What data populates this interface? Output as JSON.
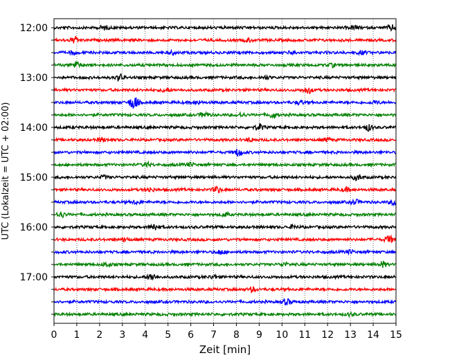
{
  "chart_data": {
    "type": "line",
    "title": "",
    "xlabel": "Zeit  [min]",
    "ylabel": "UTC (Lokalzeit = UTC + 02:00)",
    "xlim": [
      0,
      15
    ],
    "x_ticks": [
      0,
      1,
      2,
      3,
      4,
      5,
      6,
      7,
      8,
      9,
      10,
      11,
      12,
      13,
      14,
      15
    ],
    "y_tick_labels": [
      "12:00",
      "13:00",
      "14:00",
      "15:00",
      "16:00",
      "17:00"
    ],
    "grid": "vertical dotted lines at each minute",
    "trace_colors": [
      "#000000",
      "#ff0000",
      "#0000ff",
      "#008000"
    ],
    "series": [
      {
        "start": "12:00",
        "color": "#000000",
        "events": [
          {
            "x": 2.2,
            "amp": 0.6
          },
          {
            "x": 13.2,
            "amp": 0.6
          },
          {
            "x": 14.8,
            "amp": 0.8
          }
        ]
      },
      {
        "start": "12:15",
        "color": "#ff0000",
        "events": [
          {
            "x": 0.9,
            "amp": 1.0
          },
          {
            "x": 8.5,
            "amp": 0.5
          }
        ]
      },
      {
        "start": "12:30",
        "color": "#0000ff",
        "events": [
          {
            "x": 0.8,
            "amp": 0.5
          },
          {
            "x": 5.2,
            "amp": 0.5
          },
          {
            "x": 10.5,
            "amp": 0.6
          },
          {
            "x": 13.5,
            "amp": 0.5
          }
        ]
      },
      {
        "start": "12:45",
        "color": "#008000",
        "events": [
          {
            "x": 0.95,
            "amp": 1.2
          },
          {
            "x": 12.2,
            "amp": 0.5
          }
        ]
      },
      {
        "start": "13:00",
        "color": "#000000",
        "events": [
          {
            "x": 2.9,
            "amp": 1.0
          },
          {
            "x": 9.3,
            "amp": 0.5
          }
        ]
      },
      {
        "start": "13:15",
        "color": "#ff0000",
        "events": [
          {
            "x": 4.9,
            "amp": 0.7
          },
          {
            "x": 11.15,
            "amp": 1.0
          }
        ]
      },
      {
        "start": "13:30",
        "color": "#0000ff",
        "events": [
          {
            "x": 3.5,
            "amp": 2.4
          },
          {
            "x": 6.3,
            "amp": 0.5
          },
          {
            "x": 10.8,
            "amp": 0.6
          },
          {
            "x": 14.1,
            "amp": 0.5
          }
        ]
      },
      {
        "start": "13:45",
        "color": "#008000",
        "events": [
          {
            "x": 6.6,
            "amp": 0.8
          },
          {
            "x": 8.2,
            "amp": 0.6
          },
          {
            "x": 9.6,
            "amp": 0.9
          }
        ]
      },
      {
        "start": "14:00",
        "color": "#000000",
        "events": [
          {
            "x": 9.0,
            "amp": 1.0
          },
          {
            "x": 13.8,
            "amp": 1.0
          }
        ]
      },
      {
        "start": "14:15",
        "color": "#ff0000",
        "events": [
          {
            "x": 2.1,
            "amp": 0.6
          },
          {
            "x": 8.6,
            "amp": 0.5
          },
          {
            "x": 12.0,
            "amp": 0.6
          }
        ]
      },
      {
        "start": "14:30",
        "color": "#0000ff",
        "events": [
          {
            "x": 8.1,
            "amp": 1.2
          }
        ]
      },
      {
        "start": "14:45",
        "color": "#008000",
        "events": [
          {
            "x": 4.1,
            "amp": 0.6
          },
          {
            "x": 6.0,
            "amp": 0.5
          }
        ]
      },
      {
        "start": "15:00",
        "color": "#000000",
        "events": [
          {
            "x": 2.2,
            "amp": 0.5
          },
          {
            "x": 13.3,
            "amp": 0.9
          }
        ]
      },
      {
        "start": "15:15",
        "color": "#ff0000",
        "events": [
          {
            "x": 4.2,
            "amp": 0.6
          },
          {
            "x": 7.15,
            "amp": 1.0
          },
          {
            "x": 12.8,
            "amp": 0.6
          }
        ]
      },
      {
        "start": "15:30",
        "color": "#0000ff",
        "events": [
          {
            "x": 3.6,
            "amp": 0.5
          },
          {
            "x": 13.2,
            "amp": 0.8
          },
          {
            "x": 14.9,
            "amp": 0.8
          }
        ]
      },
      {
        "start": "15:45",
        "color": "#008000",
        "events": [
          {
            "x": 0.3,
            "amp": 0.9
          },
          {
            "x": 7.5,
            "amp": 0.6
          }
        ]
      },
      {
        "start": "16:00",
        "color": "#000000",
        "events": [
          {
            "x": 4.4,
            "amp": 1.1
          },
          {
            "x": 10.5,
            "amp": 0.5
          }
        ]
      },
      {
        "start": "16:15",
        "color": "#ff0000",
        "events": [
          {
            "x": 3.1,
            "amp": 0.5
          },
          {
            "x": 14.7,
            "amp": 1.2
          }
        ]
      },
      {
        "start": "16:30",
        "color": "#0000ff",
        "events": [
          {
            "x": 7.3,
            "amp": 0.7
          },
          {
            "x": 13.0,
            "amp": 0.5
          }
        ]
      },
      {
        "start": "16:45",
        "color": "#008000",
        "events": [
          {
            "x": 2.3,
            "amp": 0.7
          },
          {
            "x": 10.1,
            "amp": 0.5
          },
          {
            "x": 14.4,
            "amp": 0.9
          }
        ]
      },
      {
        "start": "17:00",
        "color": "#000000",
        "events": [
          {
            "x": 4.3,
            "amp": 1.1
          },
          {
            "x": 7.0,
            "amp": 0.5
          }
        ]
      },
      {
        "start": "17:15",
        "color": "#ff0000",
        "events": [
          {
            "x": 8.7,
            "amp": 0.7
          }
        ]
      },
      {
        "start": "17:30",
        "color": "#0000ff",
        "events": [
          {
            "x": 10.2,
            "amp": 0.9
          }
        ]
      },
      {
        "start": "17:45",
        "color": "#008000",
        "events": [
          {
            "x": 13.0,
            "amp": 0.4
          }
        ]
      }
    ]
  }
}
